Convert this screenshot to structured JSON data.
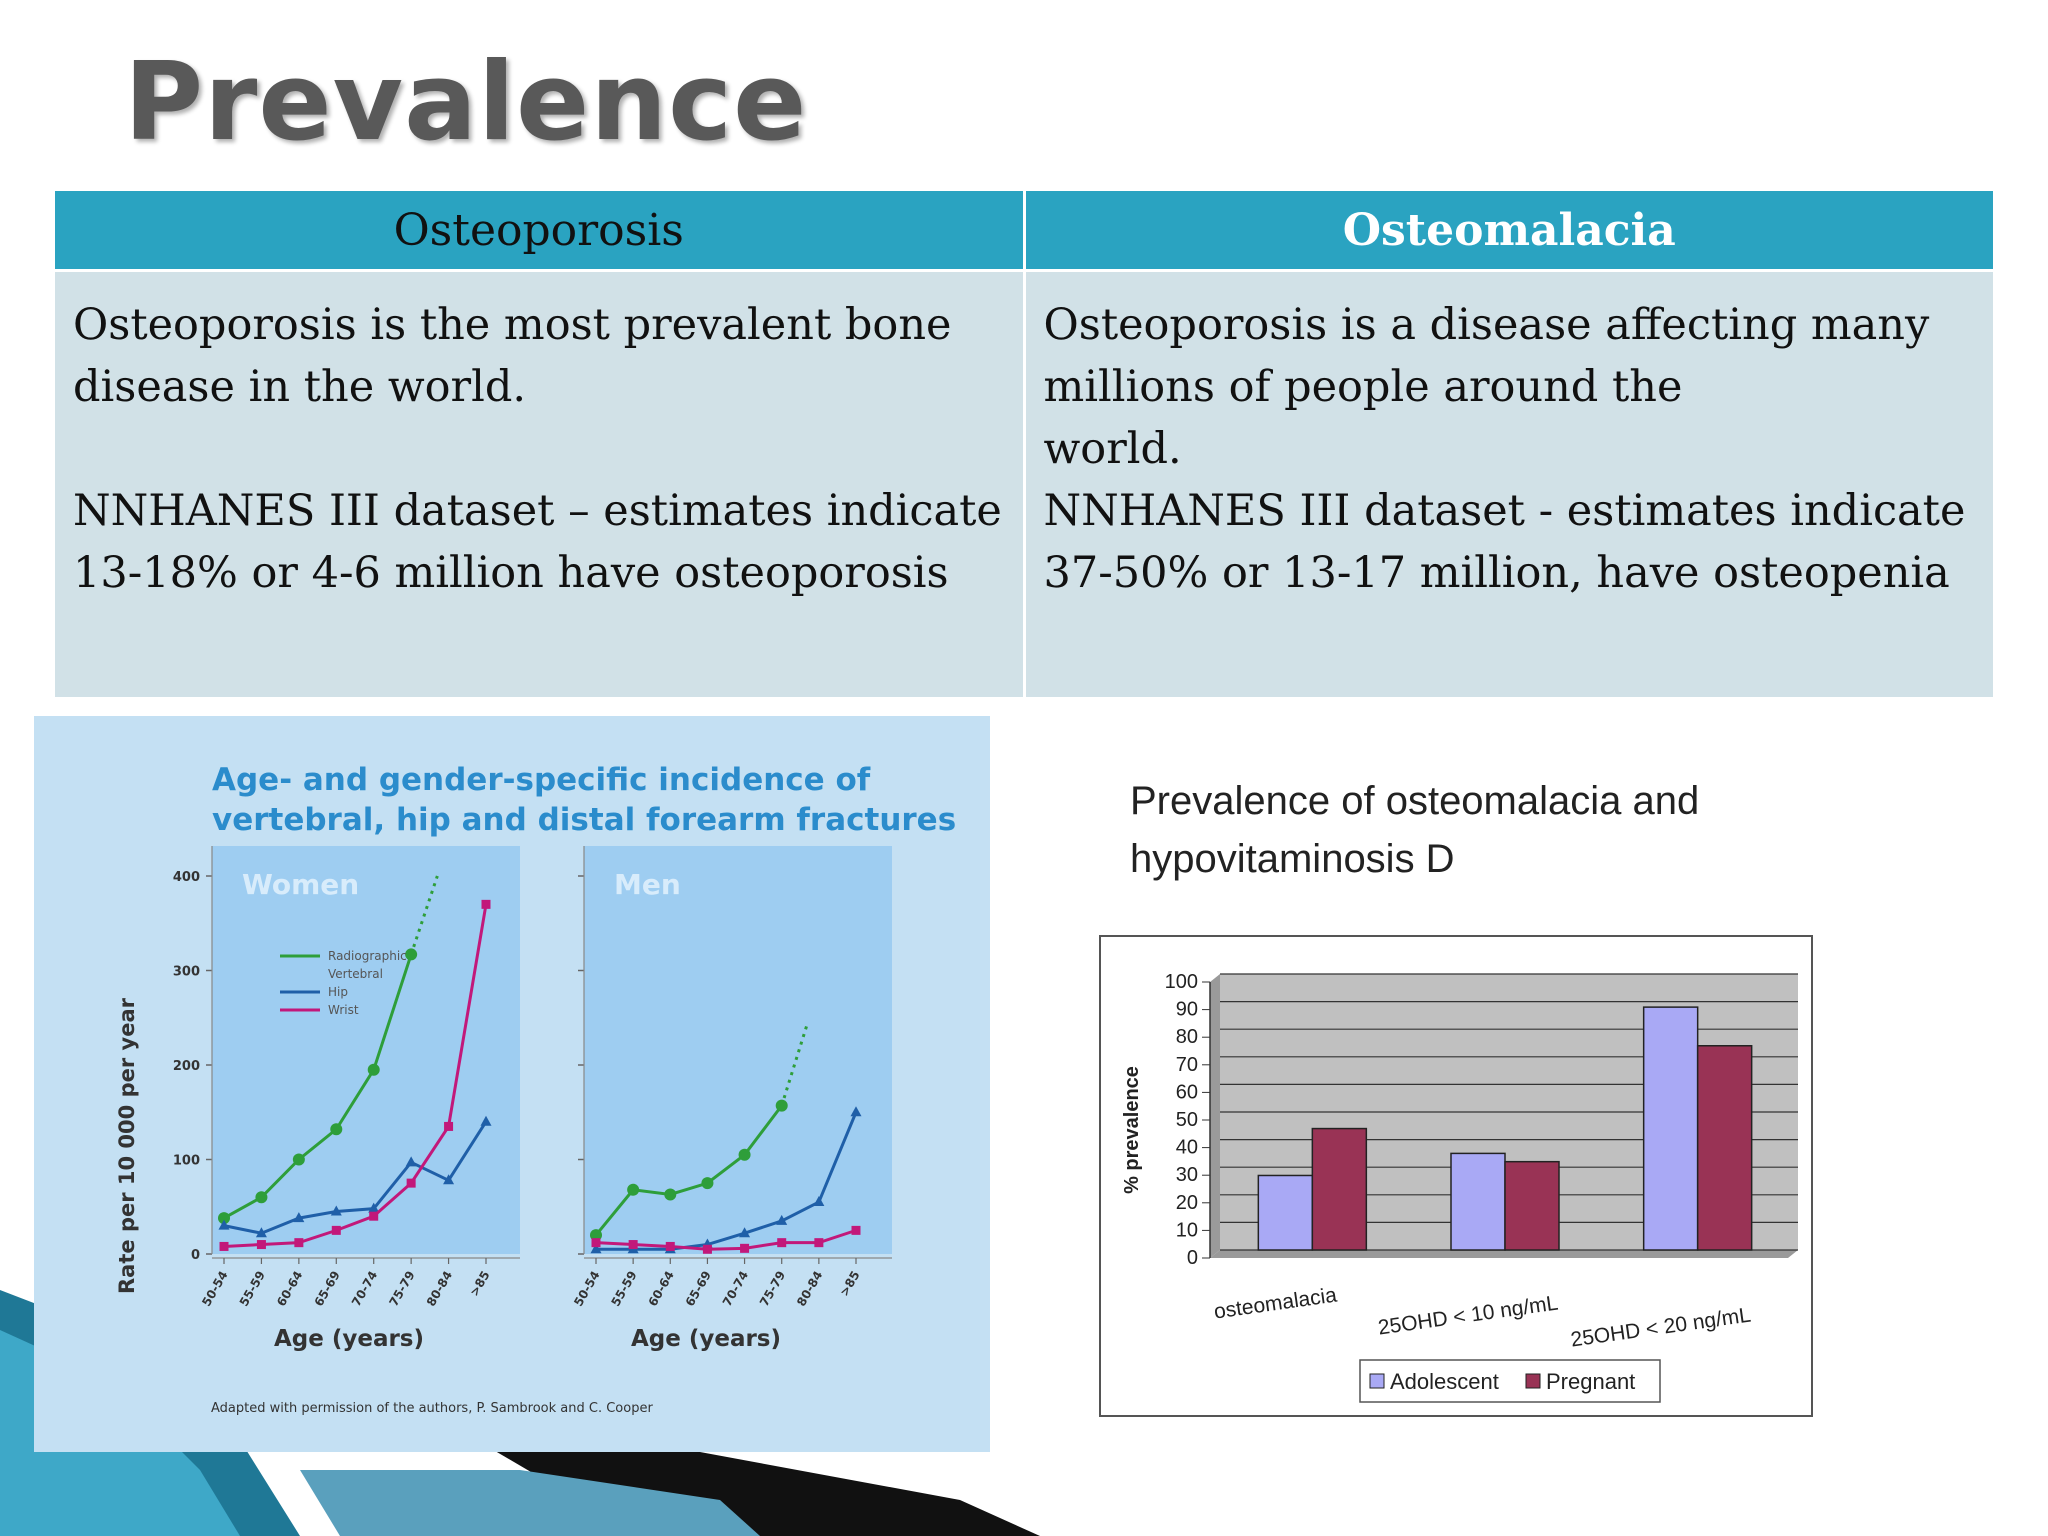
{
  "slide": {
    "title": "Prevalence"
  },
  "table": {
    "headers": [
      "Osteoporosis",
      "Osteomalacia"
    ],
    "col1": {
      "p1": "Osteoporosis is the most prevalent bone disease in the world.",
      "p2": "NNHANES III dataset – estimates indicate 13-18% or 4-6 million have osteoporosis"
    },
    "col2": {
      "p1_line1": "Osteoporosis is a disease affecting many",
      "p1_line2": "millions of people around the",
      "p1_line3": "world.",
      "p2": "NNHANES III dataset - estimates indicate 37-50% or 13-17 million, have osteopenia"
    }
  },
  "chart_data": [
    {
      "type": "line",
      "title": "Age- and gender-specific incidence of vertebral, hip and distal forearm fractures",
      "title_lines": [
        "Age- and gender-specific incidence of",
        "vertebral, hip and distal forearm fractures"
      ],
      "ylabel": "Rate per 10 000 per year",
      "xlabel": "Age (years)",
      "ylim": [
        0,
        400
      ],
      "yticks": [
        "0",
        "100",
        "200",
        "300",
        "400"
      ],
      "categories": [
        "50-54",
        "55-59",
        "60-64",
        "65-69",
        "70-74",
        "75-79",
        "80-84",
        ">85"
      ],
      "legend": [
        "Radiographic Vertebral",
        "Hip",
        "Wrist"
      ],
      "colors": {
        "vertebral": "#2e9e3a",
        "hip": "#1f5fa8",
        "wrist": "#c2187a",
        "panel": "#9ecdf1"
      },
      "footnote": "Adapted with permission of the authors, P. Sambrook and C. Cooper",
      "panels": [
        {
          "name": "Women",
          "series": [
            {
              "key": "vertebral",
              "values": [
                38,
                60,
                100,
                132,
                195,
                317,
                null,
                null
              ],
              "dotted_to": 400
            },
            {
              "key": "hip",
              "values": [
                30,
                22,
                38,
                45,
                48,
                97,
                78,
                140
              ]
            },
            {
              "key": "wrist",
              "values": [
                8,
                10,
                12,
                25,
                40,
                75,
                135,
                370
              ]
            }
          ]
        },
        {
          "name": "Men",
          "series": [
            {
              "key": "vertebral",
              "values": [
                20,
                68,
                63,
                75,
                105,
                157,
                null,
                null
              ],
              "dotted_to": 245
            },
            {
              "key": "hip",
              "values": [
                5,
                5,
                5,
                10,
                22,
                35,
                55,
                150
              ]
            },
            {
              "key": "wrist",
              "values": [
                12,
                10,
                8,
                5,
                6,
                12,
                12,
                25
              ]
            }
          ]
        }
      ]
    },
    {
      "type": "bar",
      "title": "Prevalence of osteomalacia and hypovitaminosis D",
      "title_lines": [
        "Prevalence of osteomalacia and",
        "hypovitaminosis D"
      ],
      "ylabel": "% prevalence",
      "ylim": [
        0,
        100
      ],
      "yticks": [
        "0",
        "10",
        "20",
        "30",
        "40",
        "50",
        "60",
        "70",
        "80",
        "90",
        "100"
      ],
      "categories": [
        "osteomalacia",
        "25OHD < 10 ng/mL",
        "25OHD < 20 ng/mL"
      ],
      "series": [
        {
          "name": "Adolescent",
          "color": "#a9a9f5",
          "values": [
            27,
            35,
            88
          ]
        },
        {
          "name": "Pregnant",
          "color": "#993355",
          "values": [
            44,
            32,
            74
          ]
        }
      ],
      "legend": "bottom"
    }
  ]
}
